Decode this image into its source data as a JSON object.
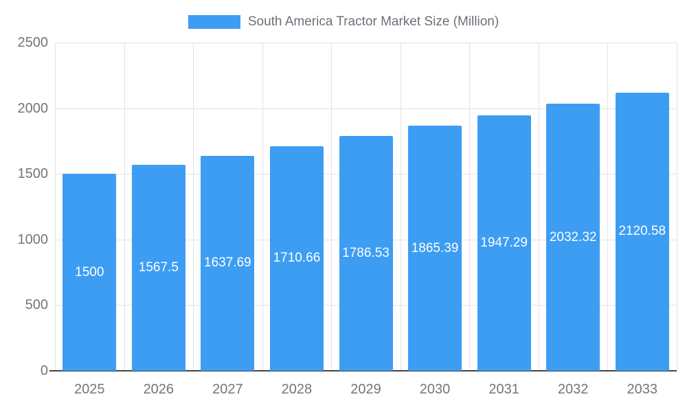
{
  "chart_data": {
    "type": "bar",
    "title": "South America Tractor Market Size (Million)",
    "categories": [
      "2025",
      "2026",
      "2027",
      "2028",
      "2029",
      "2030",
      "2031",
      "2032",
      "2033"
    ],
    "values": [
      1500,
      1567.5,
      1637.69,
      1710.66,
      1786.53,
      1865.39,
      1947.29,
      2032.32,
      2120.58
    ],
    "value_labels": [
      "1500",
      "1567.5",
      "1637.69",
      "1710.66",
      "1786.53",
      "1865.39",
      "1947.29",
      "2032.32",
      "2120.58"
    ],
    "xlabel": "",
    "ylabel": "",
    "ylim": [
      0,
      2500
    ],
    "yticks": [
      0,
      500,
      1000,
      1500,
      2000,
      2500
    ],
    "grid": true,
    "legend_position": "top",
    "bar_color": "#3d9df3",
    "value_label_color": "#ffffff",
    "axis_text_color": "#757575",
    "grid_color": "#e3e3e3",
    "baseline_color": "#424242",
    "background_color": "#ffffff"
  }
}
